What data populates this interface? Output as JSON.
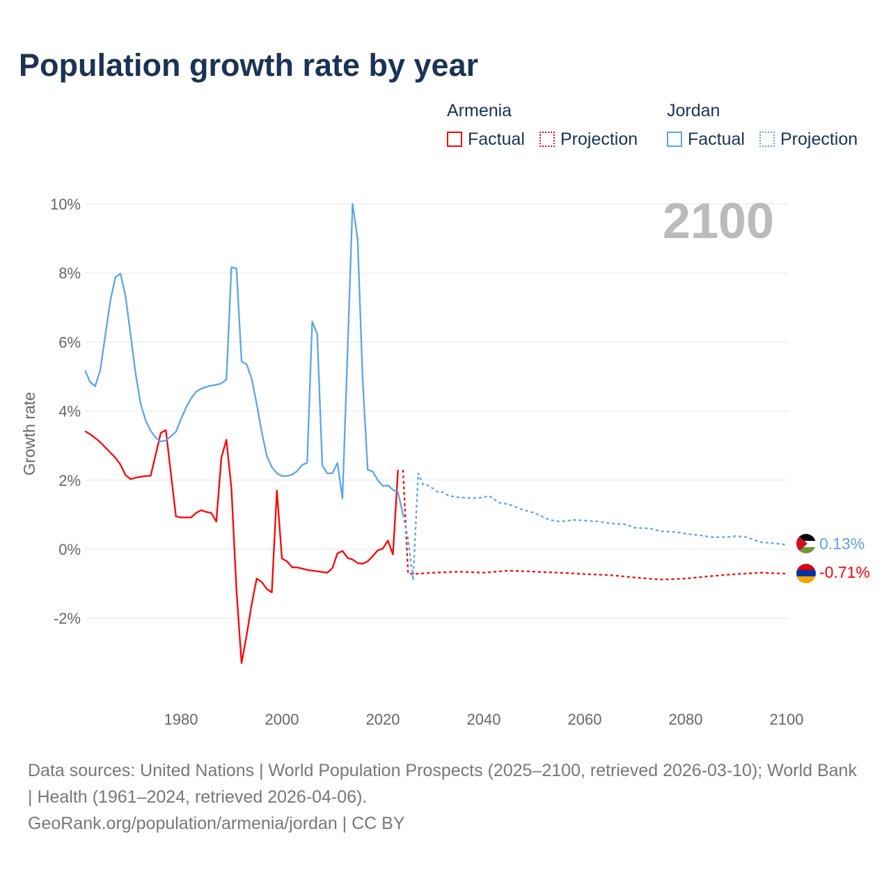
{
  "title": "Population growth rate by year",
  "legend": {
    "armenia": "Armenia",
    "jordan": "Jordan",
    "factual": "Factual",
    "projection": "Projection"
  },
  "year_label": "2100",
  "end_labels": {
    "jordan": "0.13%",
    "armenia": "-0.71%"
  },
  "footer": {
    "sources": "Data sources: United Nations | World Population Prospects (2025–2100, retrieved 2026-03-10); World Bank | Health (1961–2024, retrieved 2026-04-06).",
    "link": "GeoRank.org/population/armenia/jordan | CC BY"
  },
  "chart_data": {
    "type": "line",
    "title": "Population growth rate by year",
    "xlabel": "",
    "ylabel": "Growth rate",
    "xlim": [
      1961,
      2100
    ],
    "ylim": [
      -4,
      10
    ],
    "xticks": [
      "1980",
      "2000",
      "2020",
      "2040",
      "2060",
      "2080",
      "2100"
    ],
    "yticks": [
      "10%",
      "8%",
      "6%",
      "4%",
      "2%",
      "0%",
      "-2%"
    ],
    "colors": {
      "armenia": "#ff0000",
      "jordan": "#5ba4ea"
    },
    "series": [
      {
        "name": "Armenia",
        "kind": "factual",
        "x0": 1961,
        "values": [
          3.42,
          3.33,
          3.22,
          3.1,
          2.95,
          2.8,
          2.65,
          2.45,
          2.15,
          2.03,
          2.07,
          2.1,
          2.12,
          2.13,
          2.75,
          3.37,
          3.45,
          2.2,
          0.95,
          0.92,
          0.92,
          0.92,
          1.05,
          1.13,
          1.08,
          1.05,
          0.8,
          2.65,
          3.17,
          1.75,
          -1.2,
          -3.3,
          -2.5,
          -1.6,
          -0.85,
          -0.95,
          -1.15,
          -1.25,
          1.7,
          -0.27,
          -0.35,
          -0.52,
          -0.53,
          -0.56,
          -0.6,
          -0.62,
          -0.64,
          -0.66,
          -0.68,
          -0.55,
          -0.12,
          -0.05,
          -0.25,
          -0.3,
          -0.4,
          -0.42,
          -0.35,
          -0.2,
          -0.03,
          0.02,
          0.25,
          -0.15,
          2.3
        ]
      },
      {
        "name": "Armenia",
        "kind": "projection",
        "x": [
          2024,
          2025,
          2026,
          2030,
          2035,
          2040,
          2045,
          2050,
          2055,
          2060,
          2065,
          2070,
          2075,
          2080,
          2085,
          2090,
          2095,
          2100
        ],
        "values": [
          2.3,
          -0.7,
          -0.72,
          -0.68,
          -0.65,
          -0.68,
          -0.62,
          -0.65,
          -0.68,
          -0.72,
          -0.75,
          -0.82,
          -0.88,
          -0.85,
          -0.78,
          -0.72,
          -0.68,
          -0.71
        ]
      },
      {
        "name": "Jordan",
        "kind": "factual",
        "x0": 1961,
        "values": [
          5.18,
          4.84,
          4.72,
          5.18,
          6.19,
          7.2,
          7.88,
          7.98,
          7.34,
          6.23,
          5.1,
          4.21,
          3.73,
          3.43,
          3.23,
          3.12,
          3.15,
          3.27,
          3.4,
          3.77,
          4.1,
          4.37,
          4.56,
          4.65,
          4.7,
          4.74,
          4.76,
          4.8,
          4.92,
          8.17,
          8.13,
          5.44,
          5.36,
          4.94,
          4.21,
          3.4,
          2.7,
          2.38,
          2.2,
          2.12,
          2.12,
          2.16,
          2.26,
          2.44,
          2.5,
          6.6,
          6.23,
          2.42,
          2.2,
          2.2,
          2.5,
          1.47,
          5.7,
          10.0,
          8.99,
          4.9,
          2.3,
          2.25,
          2.0,
          1.83,
          1.85,
          1.72,
          1.65,
          1.0
        ]
      },
      {
        "name": "Jordan",
        "kind": "projection",
        "x": [
          2024,
          2025,
          2026,
          2027,
          2028,
          2029,
          2030,
          2031,
          2032,
          2033,
          2035,
          2038,
          2040,
          2041,
          2043,
          2045,
          2047,
          2050,
          2053,
          2055,
          2058,
          2060,
          2063,
          2065,
          2068,
          2070,
          2073,
          2075,
          2078,
          2080,
          2083,
          2085,
          2088,
          2090,
          2092,
          2095,
          2097,
          2100
        ],
        "values": [
          1.0,
          0.3,
          -0.9,
          2.2,
          1.87,
          1.85,
          1.75,
          1.65,
          1.65,
          1.55,
          1.5,
          1.48,
          1.5,
          1.55,
          1.35,
          1.3,
          1.18,
          1.05,
          0.85,
          0.8,
          0.85,
          0.83,
          0.8,
          0.75,
          0.72,
          0.62,
          0.6,
          0.52,
          0.5,
          0.45,
          0.4,
          0.35,
          0.35,
          0.38,
          0.35,
          0.2,
          0.18,
          0.13
        ]
      }
    ]
  }
}
